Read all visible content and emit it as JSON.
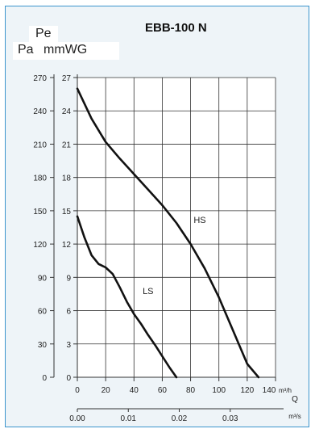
{
  "chart_data": {
    "type": "line",
    "title": "EBB-100 N",
    "y_label_top": "Pe",
    "y_units": [
      "Pa",
      "mmWG"
    ],
    "y_ticks_pa": [
      0,
      30,
      60,
      90,
      120,
      150,
      180,
      210,
      240,
      270
    ],
    "y_ticks_mmwg": [
      0,
      3,
      6,
      9,
      12,
      15,
      18,
      21,
      24,
      27
    ],
    "ylim_mmwg": [
      0,
      27
    ],
    "x_ticks_m3h": [
      0,
      20,
      40,
      60,
      80,
      100,
      120,
      140
    ],
    "x_unit_m3h": "m³/h",
    "x_label": "Q",
    "x_ticks_m3s": [
      "0.00",
      "0.01",
      "0.02",
      "0.03"
    ],
    "x_unit_m3s": "m³/s",
    "xlim_m3h": [
      0,
      140
    ],
    "grid": true,
    "series": [
      {
        "name": "HS",
        "x": [
          0,
          10,
          20,
          30,
          40,
          50,
          60,
          70,
          80,
          90,
          100,
          110,
          120,
          128
        ],
        "y": [
          26,
          23.3,
          21.2,
          19.7,
          18.3,
          16.9,
          15.5,
          13.9,
          12,
          9.8,
          7.2,
          4.2,
          1.2,
          0
        ]
      },
      {
        "name": "LS",
        "x": [
          0,
          5,
          10,
          15,
          20,
          25,
          30,
          35,
          40,
          45,
          50,
          55,
          60,
          65,
          70
        ],
        "y": [
          14.5,
          12.6,
          11,
          10.2,
          9.9,
          9.3,
          8.1,
          6.8,
          5.7,
          4.8,
          3.8,
          2.9,
          1.9,
          0.9,
          0
        ]
      }
    ]
  }
}
